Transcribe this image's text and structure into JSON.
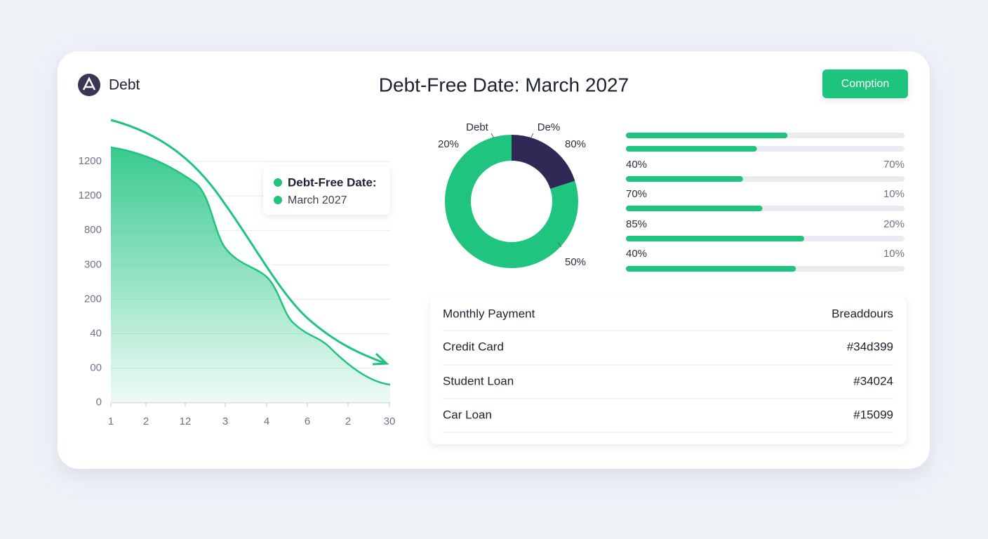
{
  "header": {
    "logo_text": "Debt",
    "title": "Debt-Free Date: March 2027",
    "button": "Comption"
  },
  "area_chart": {
    "y_labels": [
      "1200",
      "1200",
      "800",
      "300",
      "200",
      "40",
      "00",
      "0"
    ],
    "x_labels": [
      "1",
      "2",
      "12",
      "3",
      "4",
      "6",
      "2",
      "30"
    ],
    "legend": [
      "Debt-Free Date:",
      "March 2027"
    ]
  },
  "donut": {
    "labels": [
      "Debt",
      "De%",
      "20%",
      "80%",
      "50%"
    ],
    "segments": [
      {
        "color": "#2f2a55",
        "value": 20
      },
      {
        "color": "#1fc47e",
        "value": 80
      }
    ]
  },
  "progress": {
    "color": "#1fc47e",
    "values": [
      58,
      47,
      42,
      49,
      64,
      61
    ],
    "row_labels": [
      [
        "40%",
        "70%"
      ],
      [
        "70%",
        "10%"
      ],
      [
        "85%",
        "20%"
      ],
      [
        "40%",
        "10%"
      ]
    ]
  },
  "table": {
    "header": [
      "Monthly Payment",
      "Breaddours"
    ],
    "rows": [
      [
        "Credit Card",
        "#34d399"
      ],
      [
        "Student Loan",
        "#34024"
      ],
      [
        "Car Loan",
        "#15099"
      ]
    ]
  }
}
